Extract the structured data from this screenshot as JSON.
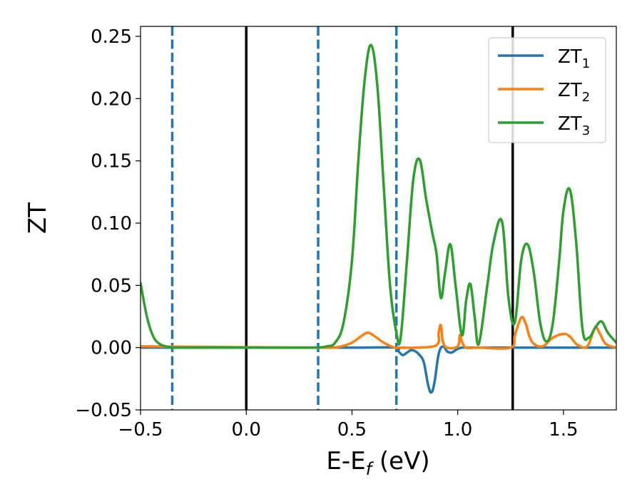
{
  "chart_data": {
    "type": "line",
    "xlabel": "E-E",
    "xlabel_sub": "f",
    "xlabel_unit": " (eV)",
    "ylabel": "ZT",
    "xlim": [
      -0.5,
      1.75
    ],
    "ylim": [
      -0.05,
      0.258
    ],
    "x_ticks": [
      -0.5,
      0.0,
      0.5,
      1.0,
      1.5
    ],
    "x_tick_labels": [
      "−0.5",
      "0.0",
      "0.5",
      "1.0",
      "1.5"
    ],
    "y_ticks": [
      -0.05,
      0.0,
      0.05,
      0.1,
      0.15,
      0.2,
      0.25
    ],
    "y_tick_labels": [
      "−0.05",
      "0.00",
      "0.05",
      "0.10",
      "0.15",
      "0.20",
      "0.25"
    ],
    "grid": false,
    "legend_position": "top-right",
    "vertical_lines": [
      {
        "x": -0.35,
        "style": "dashed",
        "color": "#1f77b4"
      },
      {
        "x": 0.0,
        "style": "solid",
        "color": "#000000"
      },
      {
        "x": 0.34,
        "style": "dashed",
        "color": "#1f77b4"
      },
      {
        "x": 0.71,
        "style": "dashed",
        "color": "#1f77b4"
      },
      {
        "x": 1.26,
        "style": "solid",
        "color": "#000000"
      }
    ],
    "series": [
      {
        "name": "ZT",
        "name_sub": "1",
        "color": "#1f77b4",
        "x": [
          -0.5,
          0.0,
          0.5,
          0.7,
          0.72,
          0.74,
          0.76,
          0.78,
          0.8,
          0.82,
          0.84,
          0.86,
          0.875,
          0.89,
          0.91,
          0.93,
          0.95,
          0.97,
          0.99,
          1.0,
          1.02,
          1.05,
          1.1,
          1.5,
          1.75
        ],
        "y": [
          0.0,
          0.0,
          0.0,
          0.0,
          -0.003,
          -0.006,
          -0.004,
          -0.002,
          -0.003,
          -0.006,
          -0.012,
          -0.03,
          -0.036,
          -0.028,
          -0.005,
          0.001,
          -0.003,
          -0.004,
          -0.002,
          -0.001,
          0.0,
          0.0,
          0.0,
          0.0,
          0.0
        ]
      },
      {
        "name": "ZT",
        "name_sub": "2",
        "color": "#ff7f0e",
        "x": [
          -0.5,
          0.3,
          0.4,
          0.45,
          0.5,
          0.55,
          0.575,
          0.6,
          0.65,
          0.7,
          0.72,
          0.8,
          0.9,
          0.91,
          0.92,
          0.93,
          0.95,
          1.0,
          1.01,
          1.02,
          1.04,
          1.1,
          1.25,
          1.27,
          1.3,
          1.32,
          1.35,
          1.4,
          1.45,
          1.5,
          1.53,
          1.56,
          1.58,
          1.6,
          1.62,
          1.65,
          1.67,
          1.7,
          1.75
        ],
        "y": [
          0.001,
          0.0,
          0.0,
          0.001,
          0.004,
          0.01,
          0.012,
          0.01,
          0.004,
          0.0,
          0.0,
          0.0,
          0.002,
          0.012,
          0.018,
          0.005,
          0.0,
          0.001,
          0.01,
          0.005,
          0.0,
          0.0,
          0.0,
          0.01,
          0.024,
          0.02,
          0.005,
          0.001,
          0.008,
          0.011,
          0.009,
          0.003,
          0.001,
          0.0,
          0.003,
          0.016,
          0.012,
          0.003,
          0.0
        ]
      },
      {
        "name": "ZT",
        "name_sub": "3",
        "color": "#2ca02c",
        "x": [
          -0.5,
          -0.47,
          -0.44,
          -0.41,
          -0.38,
          -0.35,
          -0.3,
          0.0,
          0.3,
          0.38,
          0.42,
          0.46,
          0.5,
          0.53,
          0.56,
          0.59,
          0.62,
          0.65,
          0.68,
          0.71,
          0.73,
          0.76,
          0.79,
          0.82,
          0.85,
          0.88,
          0.9,
          0.92,
          0.94,
          0.965,
          0.99,
          1.02,
          1.04,
          1.06,
          1.08,
          1.1,
          1.14,
          1.17,
          1.21,
          1.24,
          1.27,
          1.3,
          1.33,
          1.36,
          1.39,
          1.42,
          1.45,
          1.48,
          1.5,
          1.53,
          1.56,
          1.59,
          1.62,
          1.65,
          1.68,
          1.71,
          1.75
        ],
        "y": [
          0.052,
          0.025,
          0.009,
          0.003,
          0.001,
          0.0,
          0.0,
          0.0,
          0.0,
          0.001,
          0.004,
          0.02,
          0.07,
          0.15,
          0.215,
          0.243,
          0.21,
          0.13,
          0.05,
          0.012,
          0.008,
          0.07,
          0.135,
          0.151,
          0.12,
          0.092,
          0.075,
          0.04,
          0.06,
          0.083,
          0.05,
          0.01,
          0.038,
          0.051,
          0.025,
          0.003,
          0.05,
          0.085,
          0.101,
          0.04,
          0.02,
          0.07,
          0.083,
          0.06,
          0.02,
          0.005,
          0.02,
          0.07,
          0.11,
          0.127,
          0.085,
          0.015,
          0.008,
          0.016,
          0.021,
          0.012,
          0.004
        ]
      }
    ]
  }
}
